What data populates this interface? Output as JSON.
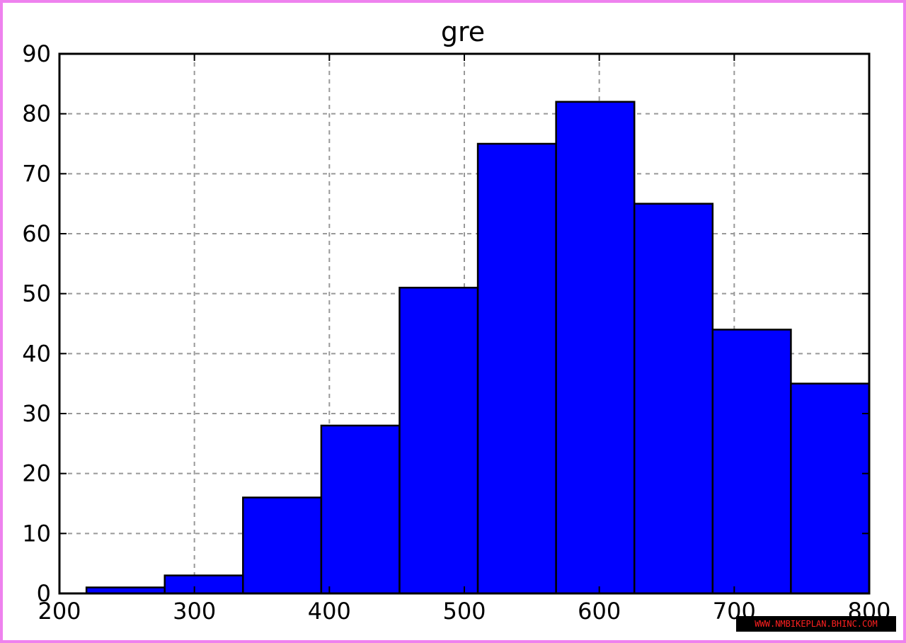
{
  "chart_data": {
    "type": "bar",
    "title": "gre",
    "xlabel": "",
    "ylabel": "",
    "bin_edges": [
      220,
      278,
      336,
      394,
      452,
      510,
      568,
      626,
      684,
      742,
      800
    ],
    "values": [
      1,
      3,
      16,
      28,
      51,
      75,
      82,
      65,
      44,
      35
    ],
    "xlim": [
      200,
      800
    ],
    "ylim": [
      0,
      90
    ],
    "xticks": [
      200,
      300,
      400,
      500,
      600,
      700,
      800
    ],
    "yticks": [
      0,
      10,
      20,
      30,
      40,
      50,
      60,
      70,
      80,
      90
    ],
    "grid": true,
    "bar_color": "#0000ff",
    "edge_color": "#000000"
  },
  "watermark": "WWW.NMBIKEPLAN.BHINC.COM"
}
